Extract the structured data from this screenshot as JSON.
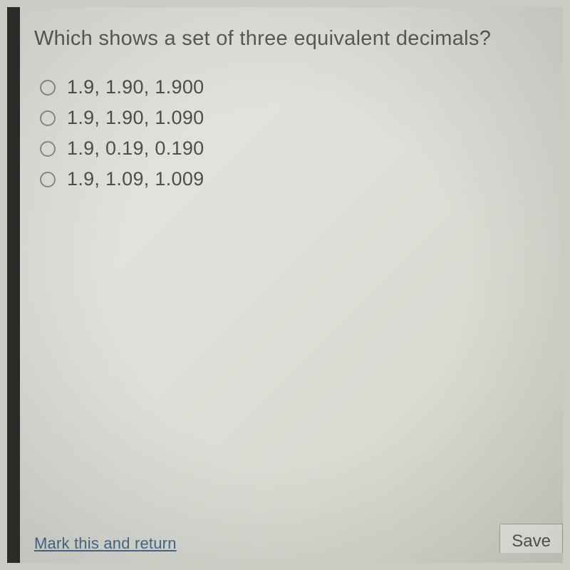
{
  "question": {
    "prompt": "Which shows a set of three equivalent decimals?"
  },
  "options": [
    {
      "label": "1.9, 1.90, 1.900"
    },
    {
      "label": "1.9, 1.90, 1.090"
    },
    {
      "label": "1.9, 0.19, 0.190"
    },
    {
      "label": "1.9, 1.09, 1.009"
    }
  ],
  "footer": {
    "mark_link": "Mark this and return",
    "save_button": "Save"
  },
  "colors": {
    "text_primary": "#5a5d57",
    "text_option": "#4e514b",
    "radio_border": "#8e908a",
    "link": "#4b6a8f",
    "screen_bg_start": "#e6e8e2",
    "screen_bg_end": "#d2d5cb",
    "bezel": "#2a2a28"
  },
  "typography": {
    "question_fontsize": 29,
    "option_fontsize": 27,
    "link_fontsize": 22
  }
}
